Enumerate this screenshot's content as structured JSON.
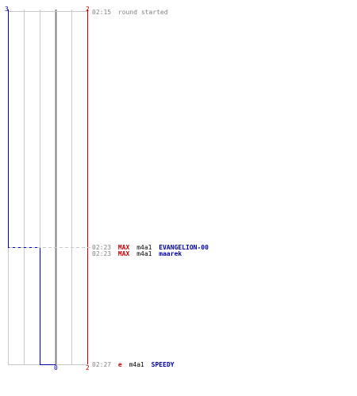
{
  "score_top": {
    "left": "3",
    "right": "2"
  },
  "score_bottom": {
    "center": "0",
    "right": "2"
  },
  "colors": {
    "blue_team": "#0000aa",
    "red_team": "#cc0000",
    "grid": "#c8c8c8",
    "center_line": "#808080",
    "dash": "#c8c8c8",
    "time": "#808080",
    "text": "#000000"
  },
  "events": [
    {
      "time": "02:15",
      "parts": [
        {
          "text": "round started",
          "color": "#808080"
        }
      ]
    },
    {
      "time": "02:23",
      "parts": [
        {
          "text": "MAX",
          "color": "#cc0000"
        },
        {
          "text": "m4a1",
          "color": "#000000"
        },
        {
          "text": "EVANGELION-00",
          "color": "#0000aa"
        }
      ]
    },
    {
      "time": "02:23",
      "parts": [
        {
          "text": "MAX",
          "color": "#cc0000"
        },
        {
          "text": "m4a1",
          "color": "#000000"
        },
        {
          "text": "maarek",
          "color": "#0000aa"
        }
      ]
    },
    {
      "time": "02:27",
      "parts": [
        {
          "text": "e",
          "color": "#cc0000"
        },
        {
          "text": "m4a1",
          "color": "#000000"
        },
        {
          "text": "SPEEDY",
          "color": "#0000aa"
        }
      ]
    }
  ]
}
